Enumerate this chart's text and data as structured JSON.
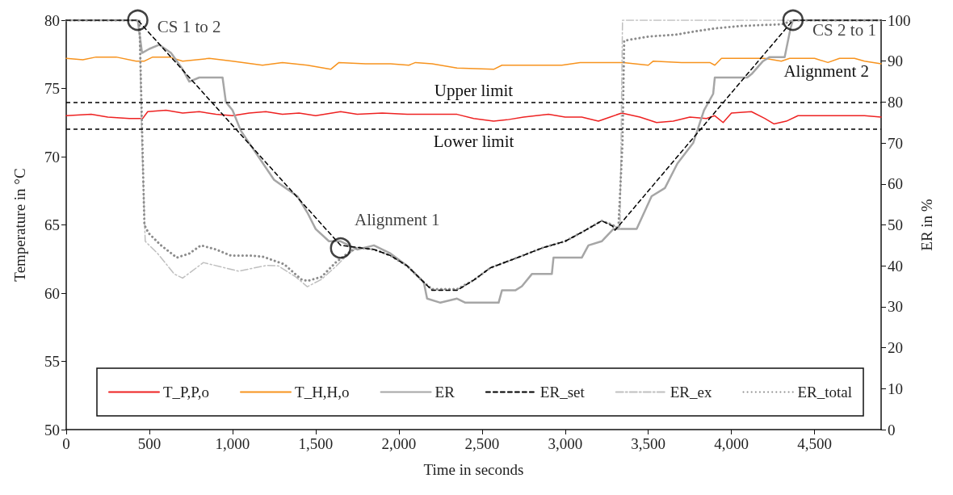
{
  "chart_data": {
    "type": "line",
    "xlabel": "Time in seconds",
    "ylabel": "Temperature in °C",
    "y2label": "ER in %",
    "xlim": [
      0,
      4900
    ],
    "xticks": [
      0,
      500,
      {
        "value": 1000,
        "label": "1,000"
      },
      {
        "value": 1500,
        "label": "1,500"
      },
      {
        "value": 2000,
        "label": "2,000"
      },
      {
        "value": 2500,
        "label": "2,500"
      },
      {
        "value": 3000,
        "label": "3,000"
      },
      {
        "value": 3500,
        "label": "3,500"
      },
      {
        "value": 4000,
        "label": "4,000"
      },
      {
        "value": 4500,
        "label": "4,500"
      }
    ],
    "ylim": [
      50,
      80
    ],
    "yticks": [
      50,
      55,
      60,
      65,
      70,
      75,
      80
    ],
    "y2lim": [
      0,
      100
    ],
    "y2ticks": [
      0,
      10,
      20,
      30,
      40,
      50,
      60,
      70,
      80,
      90,
      100
    ],
    "grid": false,
    "legend": "bottom",
    "marker": "none",
    "series": [
      {
        "name": "T_P,P,o",
        "color": "#ee2222",
        "line_style": "solid",
        "x": [
          0,
          150,
          250,
          380,
          460,
          490,
          600,
          700,
          800,
          900,
          1000,
          1100,
          1200,
          1300,
          1400,
          1500,
          1650,
          1750,
          1900,
          2050,
          2200,
          2350,
          2450,
          2570,
          2650,
          2750,
          2900,
          3000,
          3100,
          3200,
          3270,
          3340,
          3450,
          3550,
          3650,
          3750,
          3850,
          3900,
          3950,
          4000,
          4120,
          4200,
          4255,
          4330,
          4400,
          4600,
          4800,
          4900
        ],
        "values": [
          73.0,
          73.1,
          72.9,
          72.8,
          72.8,
          73.3,
          73.4,
          73.2,
          73.3,
          73.1,
          73.0,
          73.2,
          73.3,
          73.1,
          73.2,
          73.0,
          73.3,
          73.1,
          73.2,
          73.1,
          73.1,
          73.1,
          72.8,
          72.6,
          72.7,
          72.9,
          73.1,
          72.9,
          72.9,
          72.6,
          72.9,
          73.2,
          72.9,
          72.5,
          72.6,
          72.9,
          72.8,
          73.0,
          72.5,
          73.2,
          73.3,
          72.8,
          72.4,
          72.6,
          73.0,
          73.0,
          73.0,
          72.9
        ]
      },
      {
        "name": "T_H,H,o",
        "color": "#f7931e",
        "line_style": "solid",
        "x": [
          0,
          100,
          180,
          300,
          420,
          470,
          520,
          620,
          700,
          860,
          1000,
          1180,
          1300,
          1450,
          1590,
          1640,
          1800,
          1950,
          2060,
          2100,
          2200,
          2350,
          2570,
          2620,
          2800,
          2980,
          3090,
          3350,
          3500,
          3530,
          3700,
          3870,
          3900,
          3940,
          4100,
          4200,
          4300,
          4350,
          4500,
          4580,
          4650,
          4740,
          4800,
          4900
        ],
        "values": [
          77.2,
          77.1,
          77.3,
          77.3,
          77.0,
          77.0,
          77.3,
          77.3,
          77.0,
          77.2,
          77.0,
          76.7,
          76.9,
          76.7,
          76.4,
          76.9,
          76.8,
          76.8,
          76.7,
          76.9,
          76.8,
          76.5,
          76.4,
          76.7,
          76.7,
          76.7,
          76.9,
          76.9,
          76.7,
          77.0,
          76.9,
          76.9,
          76.7,
          77.2,
          77.2,
          77.2,
          77.0,
          77.2,
          77.2,
          76.9,
          77.2,
          77.2,
          77.0,
          76.8
        ]
      },
      {
        "name": "ER",
        "color": "#a6a6a6",
        "line_style": "solid",
        "axis": "y2",
        "x": [
          0,
          430,
          456,
          500,
          560,
          630,
          700,
          740,
          800,
          940,
          960,
          1000,
          1050,
          1100,
          1150,
          1250,
          1320,
          1390,
          1450,
          1500,
          1580,
          1650,
          1750,
          1850,
          1950,
          2050,
          2150,
          2170,
          2250,
          2350,
          2400,
          2600,
          2620,
          2700,
          2740,
          2800,
          2920,
          2930,
          3100,
          3140,
          3220,
          3290,
          3430,
          3520,
          3600,
          3675,
          3770,
          3835,
          3890,
          3900,
          4000,
          4095,
          4125,
          4190,
          4230,
          4320,
          4355,
          4370,
          4900
        ],
        "values": [
          100,
          100,
          92,
          93,
          94,
          92,
          88,
          85,
          86,
          86,
          80,
          78,
          73,
          70,
          67,
          61,
          59,
          57,
          53,
          49,
          46,
          46,
          44,
          45,
          43,
          40,
          36,
          32,
          31,
          32,
          31,
          31,
          34,
          34,
          35,
          38,
          38,
          42,
          42,
          45,
          46,
          49,
          49,
          57,
          59,
          65,
          70,
          78,
          82,
          86,
          86,
          86,
          87,
          90,
          91,
          91,
          98,
          100,
          100
        ]
      },
      {
        "name": "ER_set",
        "color": "#000000",
        "line_style": "dashed",
        "axis": "y2",
        "x": [
          0,
          430,
          1650,
          1750,
          1850,
          1950,
          2050,
          2150,
          2200,
          2350,
          2450,
          2550,
          2700,
          2865,
          3000,
          3105,
          3220,
          3285,
          3300,
          4370,
          4900
        ],
        "values": [
          100,
          100,
          45,
          44.5,
          44,
          42.5,
          40,
          36,
          34,
          34,
          36.5,
          39.5,
          41.8,
          44.4,
          46,
          48.3,
          51,
          49.7,
          48.7,
          100,
          100
        ]
      },
      {
        "name": "ER_ex",
        "color": "#bfbfbf",
        "line_style": "dashdot",
        "axis": "y2",
        "x": [
          0,
          440,
          455,
          475,
          550,
          650,
          700,
          825,
          1035,
          1205,
          1275,
          1380,
          1450,
          1535,
          1620,
          1690,
          1750,
          1850,
          1950,
          2050,
          2150,
          2200,
          2350,
          2450,
          2550,
          2700,
          2865,
          3000,
          3105,
          3220,
          3285,
          3330,
          3345,
          4900
        ],
        "values": [
          100,
          100,
          70,
          46,
          43,
          38,
          37,
          40.8,
          38.7,
          40.1,
          40,
          37.3,
          34.9,
          36.7,
          39.8,
          42.6,
          44.5,
          44,
          42.5,
          40,
          36,
          34.2,
          34.2,
          36.5,
          39.5,
          41.8,
          44.4,
          46,
          48.3,
          51,
          50,
          49,
          100,
          100
        ]
      },
      {
        "name": "ER_total",
        "color": "#8c8c8c",
        "line_style": "dotted",
        "axis": "y2",
        "x": [
          0,
          440,
          455,
          470,
          495,
          570,
          665,
          740,
          810,
          900,
          990,
          1117,
          1185,
          1310,
          1413,
          1450,
          1535,
          1620,
          1690,
          1750,
          1850,
          1950,
          2050,
          2150,
          2200,
          2350,
          2450,
          2550,
          2700,
          2865,
          3000,
          3105,
          3220,
          3285,
          3320,
          3345,
          3355,
          3500,
          3675,
          3740,
          3900,
          4060,
          4305,
          4375,
          4900
        ],
        "values": [
          100,
          100,
          75,
          50,
          48,
          45,
          42,
          43,
          45,
          44,
          42.5,
          42.5,
          42.2,
          40.4,
          36.7,
          36.3,
          37.3,
          40.8,
          43,
          44.5,
          44,
          42.5,
          40,
          36,
          34.3,
          34.3,
          36.5,
          39.5,
          41.8,
          44.4,
          46,
          48.3,
          51,
          50,
          49,
          70,
          95,
          96,
          96.5,
          97,
          98,
          98.6,
          99,
          100,
          100
        ]
      }
    ],
    "ref_lines": [
      {
        "axis": "y",
        "value": 74,
        "label": "Upper limit",
        "color": "#000000",
        "line_style": "dashed"
      },
      {
        "axis": "y",
        "value": 72,
        "label": "Lower limit",
        "color": "#000000",
        "line_style": "dashed"
      }
    ],
    "annotations": [
      {
        "text": "CS 1 to 2",
        "x": 430,
        "y": 80
      },
      {
        "text": "Alignment 1",
        "x": 1650,
        "y": 63.3
      },
      {
        "text": "CS 2 to 1",
        "x": 4370,
        "y": 80
      },
      "Alignment 2"
    ]
  }
}
